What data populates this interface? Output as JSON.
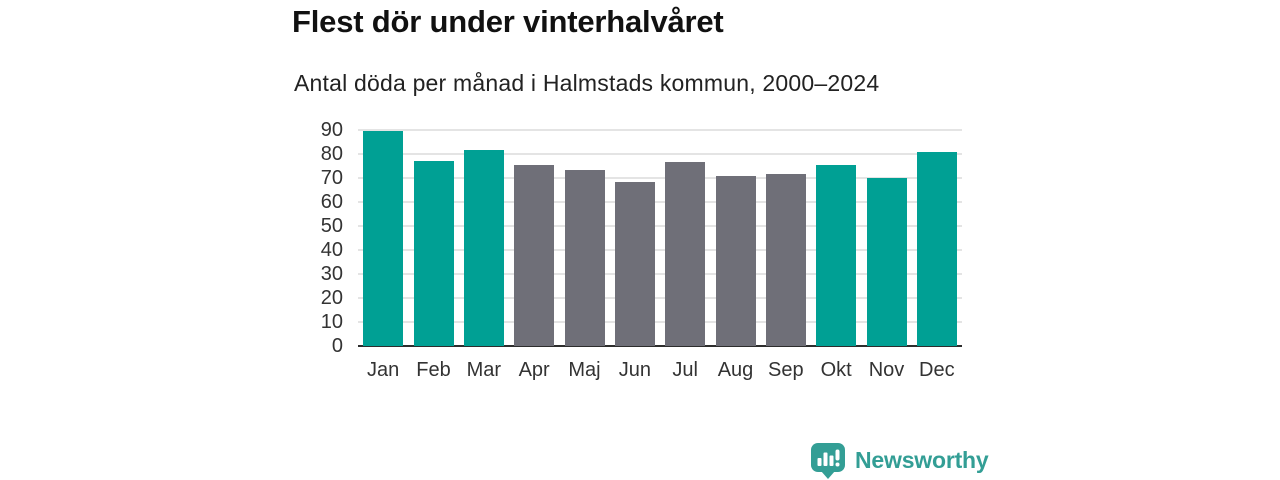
{
  "header": {
    "title": "Flest dör under vinterhalvåret",
    "subtitle": "Antal döda per månad i Halmstads kommun, 2000–2024"
  },
  "chart_data": {
    "type": "bar",
    "title": "Flest dör under vinterhalvåret",
    "subtitle": "Antal döda per månad i Halmstads kommun, 2000–2024",
    "categories": [
      "Jan",
      "Feb",
      "Mar",
      "Apr",
      "Maj",
      "Jun",
      "Jul",
      "Aug",
      "Sep",
      "Okt",
      "Nov",
      "Dec"
    ],
    "values": [
      89.5,
      77,
      81.5,
      75.5,
      73.5,
      68.5,
      76.5,
      71,
      71.5,
      75.5,
      70,
      81
    ],
    "xlabel": "",
    "ylabel": "",
    "ylim": [
      0,
      90
    ],
    "yticks": [
      0,
      10,
      20,
      30,
      40,
      50,
      60,
      70,
      80,
      90
    ],
    "grid": true,
    "legend_position": "none",
    "highlighted_indexes": [
      0,
      1,
      2,
      9,
      10,
      11
    ],
    "colors": {
      "highlight": "#00a094",
      "default": "#6f6f78",
      "grid": "#e4e4e4",
      "axis_line": "#2d2d2d",
      "tick_text": "#333333"
    }
  },
  "footer": {
    "brand_label": "Newsworthy",
    "brand_color": "#339e95",
    "logo_icon": "newsworthy-bar-chart-bubble-icon"
  }
}
